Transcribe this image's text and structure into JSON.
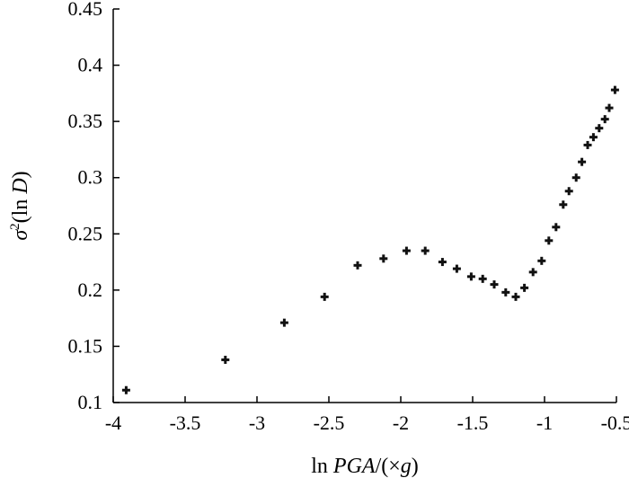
{
  "chart_data": {
    "type": "scatter",
    "title": "",
    "xlabel_parts": [
      "ln ",
      "PGA",
      "/(×",
      "g",
      ")"
    ],
    "ylabel_parts": [
      "σ",
      "2",
      "(ln ",
      "D",
      ")"
    ],
    "xlim": [
      -4,
      -0.5
    ],
    "ylim": [
      0.1,
      0.45
    ],
    "xticks": [
      "-4",
      "-3.5",
      "-3",
      "-2.5",
      "-2",
      "-1.5",
      "-1",
      "-0.5"
    ],
    "yticks": [
      "0.1",
      "0.15",
      "0.2",
      "0.25",
      "0.3",
      "0.35",
      "0.4",
      "0.45"
    ],
    "grid": false,
    "marker": "plus",
    "marker_color": "#111111",
    "points": [
      {
        "x": -3.91,
        "y": 0.111
      },
      {
        "x": -3.22,
        "y": 0.138
      },
      {
        "x": -2.81,
        "y": 0.171
      },
      {
        "x": -2.53,
        "y": 0.194
      },
      {
        "x": -2.3,
        "y": 0.222
      },
      {
        "x": -2.12,
        "y": 0.228
      },
      {
        "x": -1.96,
        "y": 0.235
      },
      {
        "x": -1.83,
        "y": 0.235
      },
      {
        "x": -1.71,
        "y": 0.225
      },
      {
        "x": -1.61,
        "y": 0.219
      },
      {
        "x": -1.51,
        "y": 0.212
      },
      {
        "x": -1.43,
        "y": 0.21
      },
      {
        "x": -1.35,
        "y": 0.205
      },
      {
        "x": -1.27,
        "y": 0.198
      },
      {
        "x": -1.2,
        "y": 0.194
      },
      {
        "x": -1.14,
        "y": 0.202
      },
      {
        "x": -1.08,
        "y": 0.216
      },
      {
        "x": -1.02,
        "y": 0.226
      },
      {
        "x": -0.97,
        "y": 0.244
      },
      {
        "x": -0.92,
        "y": 0.256
      },
      {
        "x": -0.87,
        "y": 0.276
      },
      {
        "x": -0.83,
        "y": 0.288
      },
      {
        "x": -0.78,
        "y": 0.3
      },
      {
        "x": -0.74,
        "y": 0.314
      },
      {
        "x": -0.7,
        "y": 0.329
      },
      {
        "x": -0.66,
        "y": 0.336
      },
      {
        "x": -0.62,
        "y": 0.344
      },
      {
        "x": -0.58,
        "y": 0.352
      },
      {
        "x": -0.55,
        "y": 0.362
      },
      {
        "x": -0.51,
        "y": 0.378
      }
    ]
  }
}
